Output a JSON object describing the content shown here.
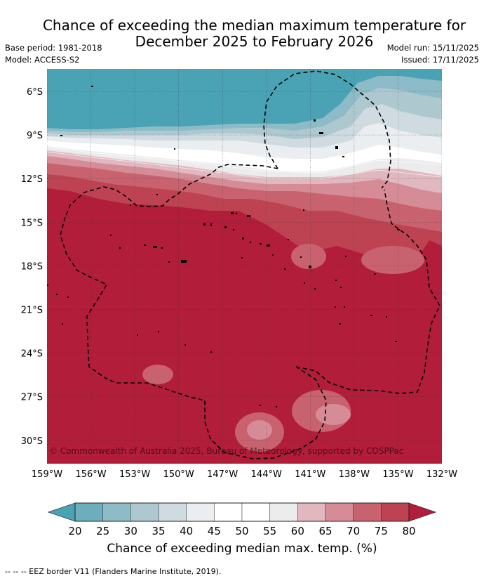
{
  "header": {
    "title_line1": "Chance of exceeding the median maximum temperature for",
    "title_line2": "December 2025 to February 2026",
    "base_period": "Base period: 1981-2018",
    "model": "Model: ACCESS-S2",
    "model_run": "Model run: 15/11/2025",
    "issued": "Issued: 17/11/2025"
  },
  "map": {
    "lat_labels": [
      "6°S",
      "9°S",
      "12°S",
      "15°S",
      "18°S",
      "21°S",
      "24°S",
      "27°S",
      "30°S"
    ],
    "lon_labels": [
      "159°W",
      "156°W",
      "153°W",
      "150°W",
      "147°W",
      "144°W",
      "141°W",
      "138°W",
      "135°W",
      "132°W"
    ],
    "copyright": "© Commonwealth of Australia 2025, Bureau of Meteorology, supported by COSPPac"
  },
  "colorbar": {
    "ticks": [
      "20",
      "25",
      "30",
      "35",
      "40",
      "45",
      "50",
      "55",
      "60",
      "65",
      "70",
      "75",
      "80"
    ],
    "colors": [
      "#4aa3b5",
      "#6daebd",
      "#8dbbc7",
      "#adc8cf",
      "#cfdbe0",
      "#eaeef0",
      "#ffffff",
      "#ffffff",
      "#ececec",
      "#e1b8bf",
      "#d68c96",
      "#c9626f",
      "#be4352",
      "#b21d39"
    ],
    "label": "Chance of exceeding median max. temp. (%)"
  },
  "footer": {
    "legend_text": "--  --  -- EEZ border V11 (Flanders Marine Institute, 2019)."
  }
}
